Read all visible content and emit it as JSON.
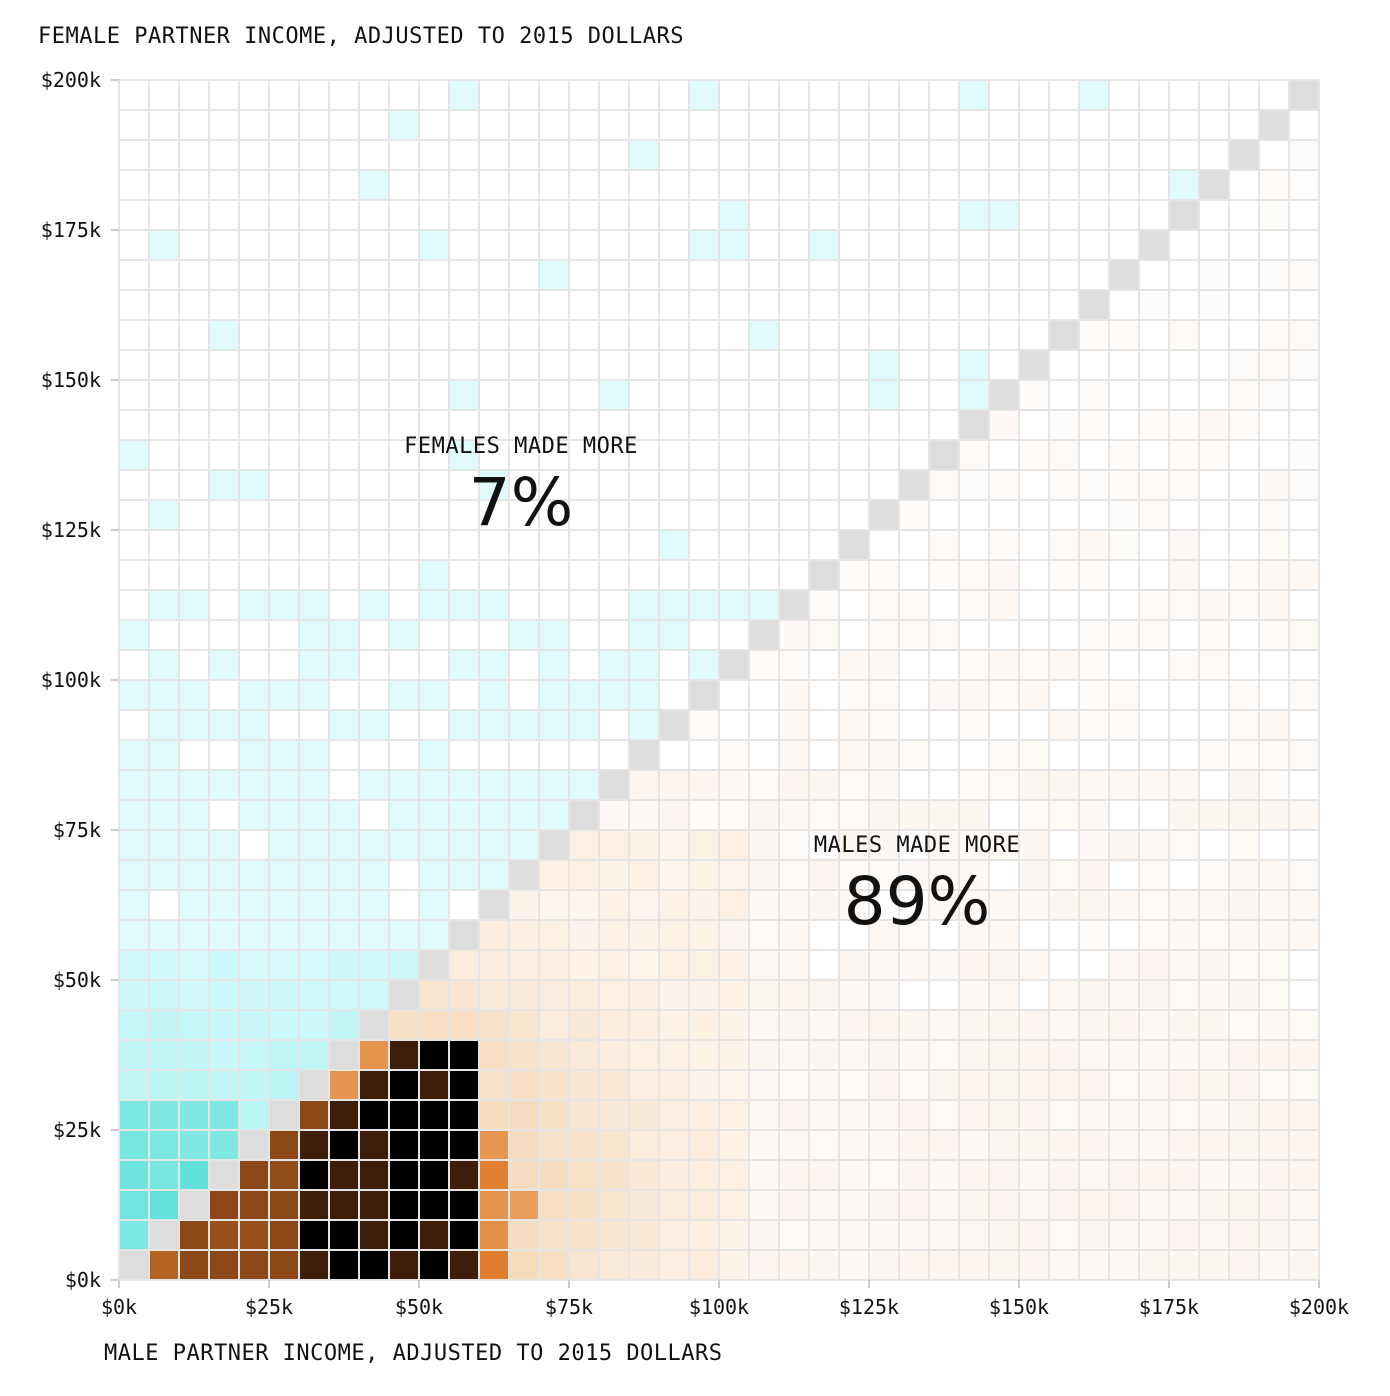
{
  "chart_data": {
    "type": "heatmap",
    "title": "",
    "ylabel": "FEMALE PARTNER INCOME, ADJUSTED TO 2015 DOLLARS",
    "xlabel": "MALE PARTNER INCOME, ADJUSTED TO 2015 DOLLARS",
    "xlim": [
      0,
      200000
    ],
    "ylim": [
      0,
      200000
    ],
    "bin_size": 5000,
    "x_ticks": [
      {
        "value": 0,
        "label": "$0k"
      },
      {
        "value": 25000,
        "label": "$25k"
      },
      {
        "value": 50000,
        "label": "$50k"
      },
      {
        "value": 75000,
        "label": "$75k"
      },
      {
        "value": 100000,
        "label": "$100k"
      },
      {
        "value": 125000,
        "label": "$125k"
      },
      {
        "value": 150000,
        "label": "$150k"
      },
      {
        "value": 175000,
        "label": "$175k"
      },
      {
        "value": 200000,
        "label": "$200k"
      }
    ],
    "y_ticks": [
      {
        "value": 0,
        "label": "$0k"
      },
      {
        "value": 25000,
        "label": "$25k"
      },
      {
        "value": 50000,
        "label": "$50k"
      },
      {
        "value": 75000,
        "label": "$75k"
      },
      {
        "value": 100000,
        "label": "$100k"
      },
      {
        "value": 125000,
        "label": "$125k"
      },
      {
        "value": 150000,
        "label": "$150k"
      },
      {
        "value": 175000,
        "label": "$175k"
      },
      {
        "value": 200000,
        "label": "$200k"
      }
    ],
    "grid": true,
    "annotations": [
      {
        "label": "FEMALES MADE MORE",
        "value": "7%",
        "region": "female_higher",
        "x": 67000,
        "y": 129000
      },
      {
        "label": "MALES MADE MORE",
        "value": "89%",
        "region": "male_higher",
        "x": 133000,
        "y": 62500
      }
    ],
    "colors": {
      "female_higher": "#5fe0d8",
      "male_higher": "#e07a28",
      "equal": "#dddddd",
      "peak": "#000000",
      "grid": "#e5e5e5"
    }
  }
}
